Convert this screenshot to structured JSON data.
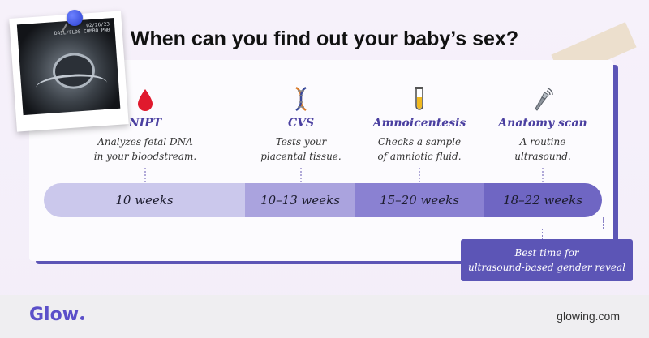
{
  "title": "When can you find out your baby’s sex?",
  "photo": {
    "overlay_text_line1": "02/26/23",
    "overlay_text_line2": "DAIL/FLDS COMBO PNB"
  },
  "methods": [
    {
      "name": "NIPT",
      "desc_line1": "Analyzes fetal DNA",
      "desc_line2": "in your bloodstream.",
      "icon": "blood-drop-icon"
    },
    {
      "name": "CVS",
      "desc_line1": "Tests your",
      "desc_line2": "placental tissue.",
      "icon": "dna-icon"
    },
    {
      "name": "Amnoicentesis",
      "desc_line1": "Checks a sample",
      "desc_line2": "of amniotic fluid.",
      "icon": "test-tube-icon"
    },
    {
      "name": "Anatomy scan",
      "desc_line1": "A routine",
      "desc_line2": "ultrasound.",
      "icon": "ultrasound-probe-icon"
    }
  ],
  "timeline": [
    {
      "label": "10 weeks",
      "color": "#cbc8ec"
    },
    {
      "label": "10–13 weeks",
      "color": "#aaa3de"
    },
    {
      "label": "15–20 weeks",
      "color": "#8a81d2"
    },
    {
      "label": "18–22 weeks",
      "color": "#6f66c3"
    }
  ],
  "callout": {
    "line1": "Best time for",
    "line2": "ultrasound-based gender reveal"
  },
  "footer": {
    "logo": "Glow",
    "site": "glowing.com"
  },
  "colors": {
    "accent": "#5c55b6",
    "method_name": "#4a3fa0",
    "blood": "#e0192d"
  }
}
